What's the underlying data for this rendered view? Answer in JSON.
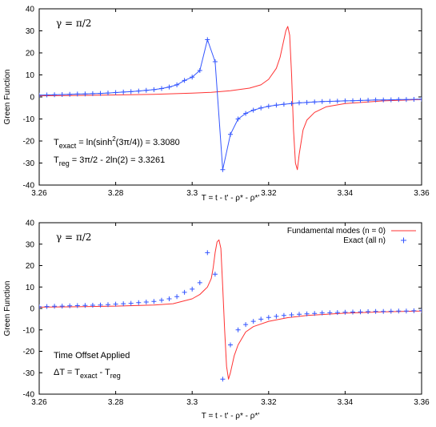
{
  "colors": {
    "fundamental": "#ff3333",
    "exact": "#3355ff",
    "axis": "#000000"
  },
  "chart_data": [
    {
      "type": "line",
      "title": "",
      "xlabel": "T = t - t' - ρ* - ρ*'",
      "ylabel": "Green Function",
      "xlim": [
        3.26,
        3.36
      ],
      "ylim": [
        -40,
        40
      ],
      "xticks": [
        "3.26",
        "3.28",
        "3.3",
        "3.32",
        "3.34",
        "3.36"
      ],
      "yticks": [
        "40",
        "30",
        "20",
        "10",
        "0",
        "-10",
        "-20",
        "-30",
        "-40"
      ],
      "grid": false,
      "annotations": {
        "gamma": "γ = π/2",
        "texact": {
          "main": "T",
          "sub": "exact",
          "rest": " = ln(sinh",
          "sup": "2",
          "tail": "(3π/4)) = 3.3080"
        },
        "treg": {
          "main": "T",
          "sub": "reg",
          "rest": " = 3π/2 - 2ln(2) = 3.3261"
        }
      },
      "series": [
        {
          "style": "line",
          "color": "#ff3333",
          "x": [
            3.26,
            3.27,
            3.28,
            3.29,
            3.3,
            3.305,
            3.31,
            3.315,
            3.318,
            3.32,
            3.322,
            3.323,
            3.324,
            3.3245,
            3.325,
            3.3255,
            3.326,
            3.3265,
            3.327,
            3.3275,
            3.328,
            3.329,
            3.33,
            3.332,
            3.335,
            3.34,
            3.35,
            3.36
          ],
          "y": [
            0.5,
            0.7,
            0.9,
            1.2,
            1.7,
            2.1,
            2.8,
            4.0,
            5.5,
            8.0,
            13.0,
            18.0,
            26.0,
            30.0,
            32.0,
            28.0,
            10.0,
            -15.0,
            -30.0,
            -33.0,
            -26.0,
            -15.0,
            -10.5,
            -7.0,
            -4.5,
            -3.0,
            -1.8,
            -1.2
          ]
        },
        {
          "style": "linespoints",
          "color": "#3355ff",
          "x": [
            3.26,
            3.262,
            3.264,
            3.266,
            3.268,
            3.27,
            3.272,
            3.274,
            3.276,
            3.278,
            3.28,
            3.282,
            3.284,
            3.286,
            3.288,
            3.29,
            3.292,
            3.294,
            3.296,
            3.298,
            3.3,
            3.302,
            3.304,
            3.306,
            3.308,
            3.31,
            3.312,
            3.314,
            3.316,
            3.318,
            3.32,
            3.322,
            3.324,
            3.326,
            3.328,
            3.33,
            3.332,
            3.334,
            3.336,
            3.338,
            3.34,
            3.342,
            3.344,
            3.346,
            3.348,
            3.35,
            3.352,
            3.354,
            3.356,
            3.358,
            3.36
          ],
          "y": [
            0.8,
            0.9,
            1.0,
            1.1,
            1.2,
            1.3,
            1.4,
            1.5,
            1.6,
            1.8,
            2.0,
            2.2,
            2.4,
            2.7,
            3.0,
            3.3,
            3.8,
            4.5,
            5.5,
            7.5,
            9.0,
            12.0,
            26.0,
            16.0,
            -33.0,
            -17.0,
            -10.0,
            -7.5,
            -6.0,
            -5.0,
            -4.2,
            -3.7,
            -3.3,
            -3.0,
            -2.7,
            -2.5,
            -2.3,
            -2.1,
            -2.0,
            -1.9,
            -1.8,
            -1.7,
            -1.6,
            -1.5,
            -1.4,
            -1.4,
            -1.3,
            -1.2,
            -1.2,
            -1.1,
            -1.0
          ]
        }
      ]
    },
    {
      "type": "line",
      "title": "",
      "xlabel": "T = t - t' - ρ* - ρ*'",
      "ylabel": "Green Function",
      "xlim": [
        3.26,
        3.36
      ],
      "ylim": [
        -40,
        40
      ],
      "xticks": [
        "3.26",
        "3.28",
        "3.3",
        "3.32",
        "3.34",
        "3.36"
      ],
      "yticks": [
        "40",
        "30",
        "20",
        "10",
        "0",
        "-10",
        "-20",
        "-30",
        "-40"
      ],
      "grid": false,
      "legend_position": "top-right",
      "annotations": {
        "gamma": "γ = π/2",
        "offset": "Time Offset Applied",
        "delta": {
          "pre": "ΔT = T",
          "sub1": "exact",
          "mid": " - T",
          "sub2": "reg"
        }
      },
      "series": [
        {
          "name": "Fundamental modes (n = 0)",
          "style": "line",
          "color": "#ff3333",
          "x": [
            3.26,
            3.27,
            3.28,
            3.29,
            3.295,
            3.3,
            3.302,
            3.304,
            3.305,
            3.3055,
            3.306,
            3.3065,
            3.307,
            3.3075,
            3.308,
            3.3085,
            3.309,
            3.3095,
            3.31,
            3.311,
            3.312,
            3.314,
            3.316,
            3.32,
            3.325,
            3.33,
            3.34,
            3.35,
            3.36
          ],
          "y": [
            0.6,
            0.8,
            1.1,
            1.6,
            2.2,
            4.5,
            6.5,
            10.0,
            14.0,
            19.0,
            26.0,
            31.0,
            32.0,
            28.0,
            10.0,
            -10.0,
            -27.0,
            -33.0,
            -30.0,
            -22.0,
            -17.0,
            -11.0,
            -8.5,
            -6.0,
            -4.3,
            -3.3,
            -2.2,
            -1.6,
            -1.2
          ]
        },
        {
          "name": "Exact (all n)",
          "style": "points",
          "color": "#3355ff",
          "x": [
            3.26,
            3.262,
            3.264,
            3.266,
            3.268,
            3.27,
            3.272,
            3.274,
            3.276,
            3.278,
            3.28,
            3.282,
            3.284,
            3.286,
            3.288,
            3.29,
            3.292,
            3.294,
            3.296,
            3.298,
            3.3,
            3.302,
            3.304,
            3.306,
            3.308,
            3.31,
            3.312,
            3.314,
            3.316,
            3.318,
            3.32,
            3.322,
            3.324,
            3.326,
            3.328,
            3.33,
            3.332,
            3.334,
            3.336,
            3.338,
            3.34,
            3.342,
            3.344,
            3.346,
            3.348,
            3.35,
            3.352,
            3.354,
            3.356,
            3.358,
            3.36
          ],
          "y": [
            0.8,
            0.9,
            1.0,
            1.1,
            1.2,
            1.3,
            1.4,
            1.5,
            1.6,
            1.8,
            2.0,
            2.2,
            2.4,
            2.7,
            3.0,
            3.3,
            3.8,
            4.5,
            5.5,
            7.5,
            9.0,
            12.0,
            26.0,
            16.0,
            -33.0,
            -17.0,
            -10.0,
            -7.5,
            -6.0,
            -5.0,
            -4.2,
            -3.7,
            -3.3,
            -3.0,
            -2.7,
            -2.5,
            -2.3,
            -2.1,
            -2.0,
            -1.9,
            -1.8,
            -1.7,
            -1.6,
            -1.5,
            -1.4,
            -1.4,
            -1.3,
            -1.2,
            -1.2,
            -1.1,
            -1.0
          ]
        }
      ]
    }
  ]
}
